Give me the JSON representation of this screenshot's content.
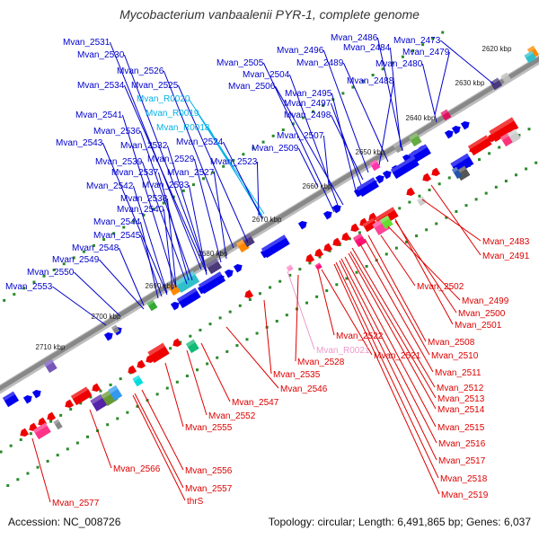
{
  "title": "Mycobacterium vanbaalenii PYR-1, complete genome",
  "footer": {
    "accession": "Accession: NC_008726",
    "topology": "Topology: circular; Length: 6,491,865 bp; Genes: 6,037"
  },
  "colors": {
    "forward_label": "#0000cc",
    "reverse_label": "#dd0000",
    "rna_forward_label": "#00b0e8",
    "rna_reverse_label": "#ee99cc",
    "backbone": "#888888",
    "tick_dots": "#2a8a2a"
  },
  "kbp_ticks": [
    "2620 kbp",
    "2630 kbp",
    "2640 kbp",
    "2650 kbp",
    "2660 kbp",
    "2670 kbp",
    "2680 kbp",
    "2690 kbp",
    "2700 kbp",
    "2710 kbp"
  ],
  "forward_labels": [
    "Mvan_2531",
    "Mvan_2530",
    "Mvan_2526",
    "Mvan_2534",
    "Mvan_2525",
    "Mvan_R0020",
    "Mvan_R0019",
    "Mvan_R0018",
    "Mvan_2541",
    "Mvan_2536",
    "Mvan_2543",
    "Mvan_2532",
    "Mvan_2524",
    "Mvan_2539",
    "Mvan_2529",
    "Mvan_2537",
    "Mvan_2527",
    "Mvan_2523",
    "Mvan_2542",
    "Mvan_2533",
    "Mvan_2538",
    "Mvan_2540",
    "Mvan_2544",
    "Mvan_2545",
    "Mvan_2548",
    "Mvan_2549",
    "Mvan_2550",
    "Mvan_2553",
    "Mvan_2505",
    "Mvan_2496",
    "Mvan_2504",
    "Mvan_2506",
    "Mvan_2486",
    "Mvan_2484",
    "Mvan_2489",
    "Mvan_2480",
    "Mvan_2473",
    "Mvan_2479",
    "Mvan_2488",
    "Mvan_2495",
    "Mvan_2497",
    "Mvan_2498",
    "Mvan_2507",
    "Mvan_2509"
  ],
  "reverse_labels": [
    "Mvan_2483",
    "Mvan_2491",
    "Mvan_2502",
    "Mvan_2499",
    "Mvan_2500",
    "Mvan_2501",
    "Mvan_2508",
    "Mvan_2510",
    "Mvan_2511",
    "Mvan_2512",
    "Mvan_2513",
    "Mvan_2514",
    "Mvan_2515",
    "Mvan_2516",
    "Mvan_2517",
    "Mvan_2518",
    "Mvan_2519",
    "Mvan_2522",
    "Mvan_R0021",
    "Mvan_2521",
    "Mvan_2528",
    "Mvan_2535",
    "Mvan_2546",
    "Mvan_2547",
    "Mvan_2552",
    "Mvan_2555",
    "Mvan_2566",
    "Mvan_2556",
    "Mvan_2557",
    "thrS",
    "Mvan_2577"
  ]
}
